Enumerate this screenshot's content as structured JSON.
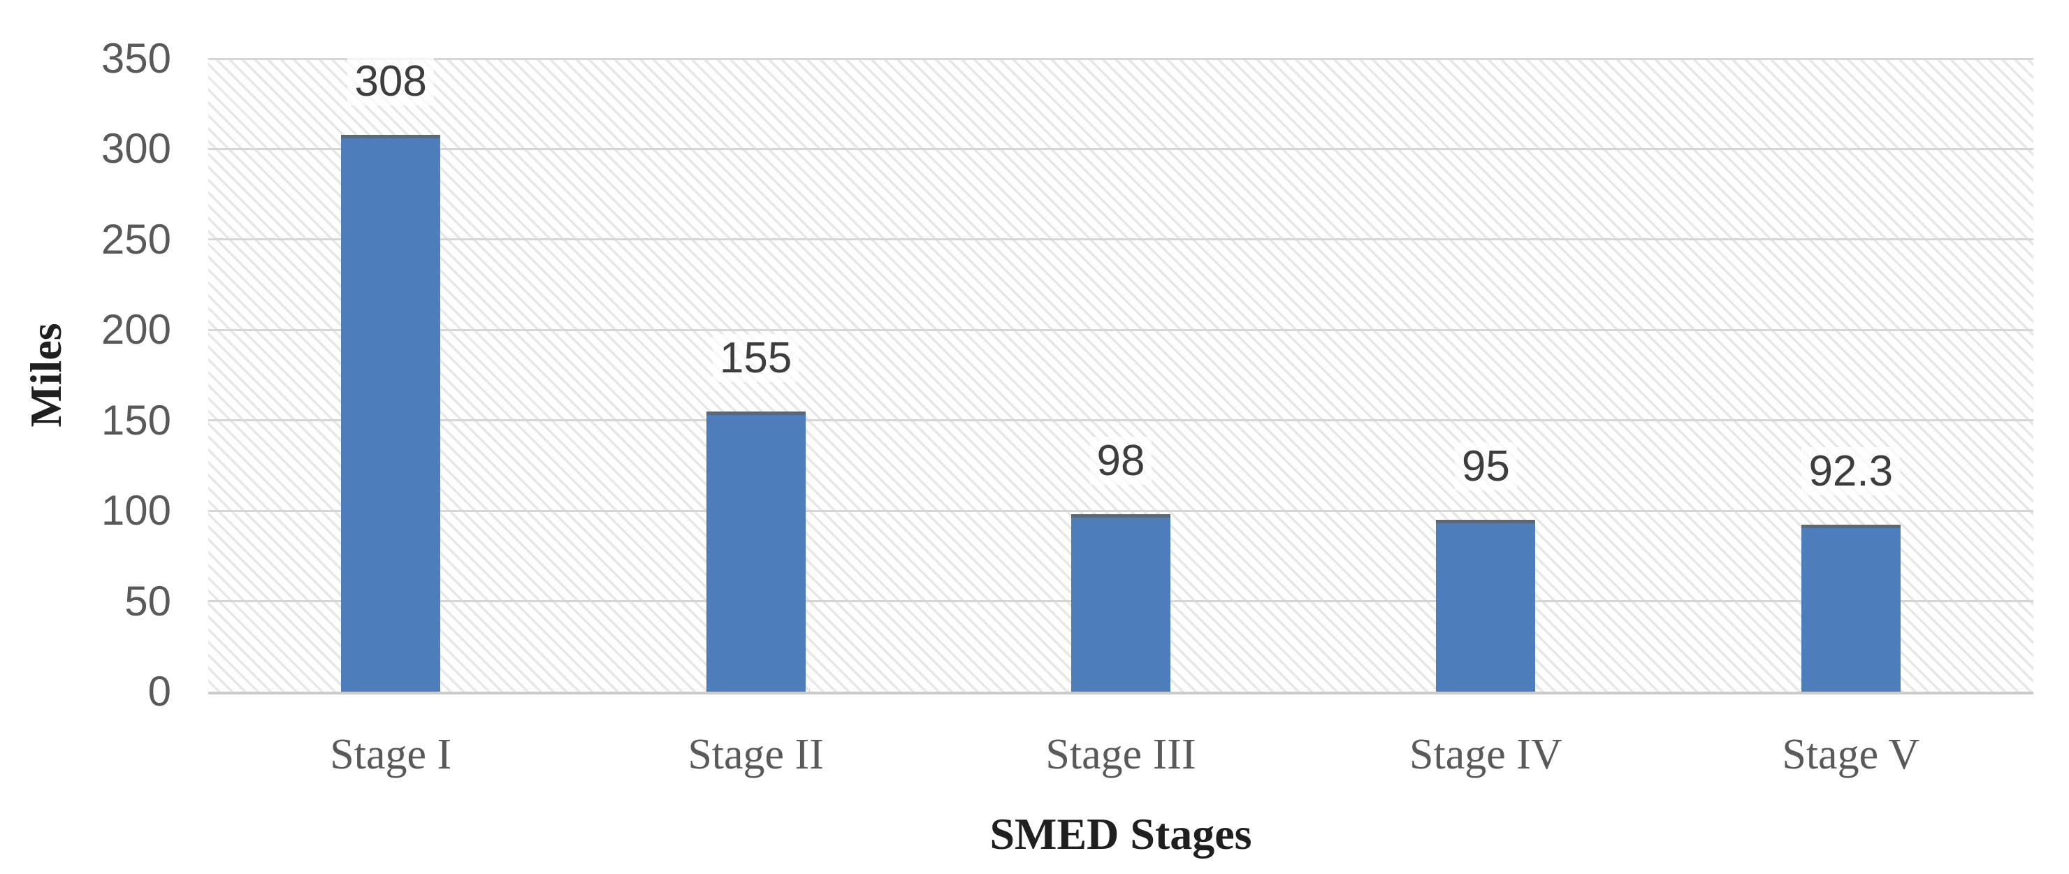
{
  "chart_data": {
    "type": "bar",
    "categories": [
      "Stage I",
      "Stage II",
      "Stage III",
      "Stage IV",
      "Stage V"
    ],
    "values": [
      308,
      155,
      98,
      95,
      92.3
    ],
    "value_labels": [
      "308",
      "155",
      "98",
      "95",
      "92.3"
    ],
    "title": "",
    "xlabel": "SMED Stages",
    "ylabel": "Miles",
    "ylim": [
      0,
      350
    ],
    "yticks": [
      0,
      50,
      100,
      150,
      200,
      250,
      300,
      350
    ],
    "grid": "horizontal",
    "legend": "none",
    "plot_background_pattern": "diagonal-hatch",
    "colors": {
      "bar": "#4d7ebb",
      "bar_top_edge": "#5a6878",
      "hatch_line": "#e7e7e7",
      "gridline": "#d6d6d6",
      "axis_line": "#cccccc",
      "tick_label": "#595959",
      "value_label": "#3d3d3d",
      "category_label": "#595959",
      "axis_title": "#1f1f1f",
      "background": "#ffffff"
    }
  }
}
